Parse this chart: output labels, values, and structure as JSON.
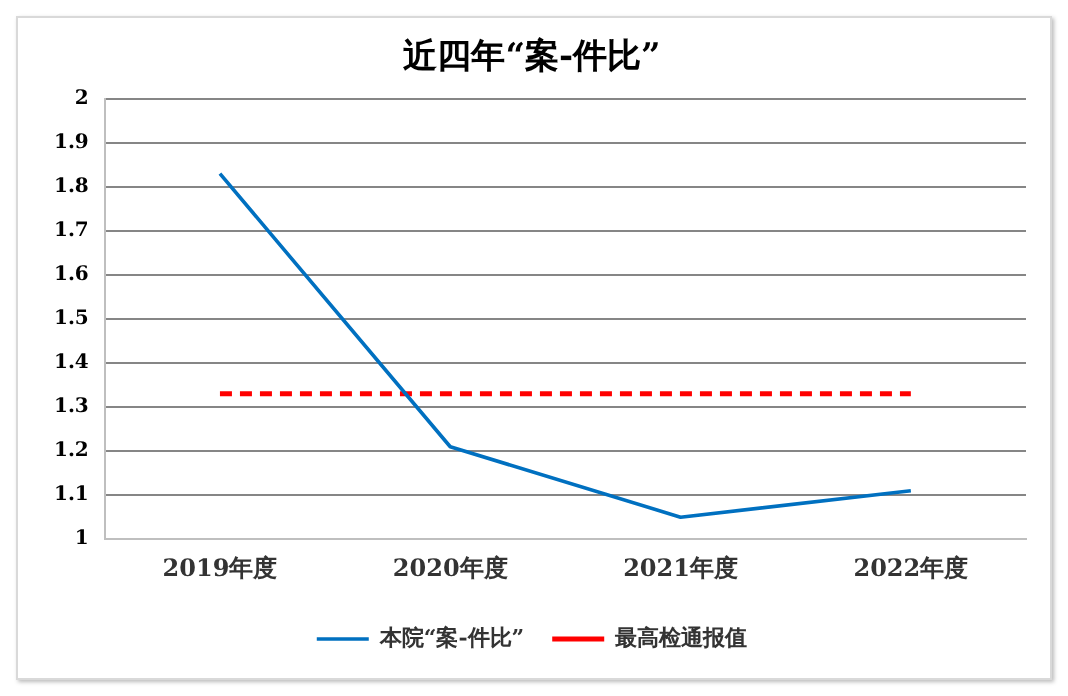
{
  "chart_data": {
    "type": "line",
    "title": "近四年“案-件比”",
    "categories": [
      "2019年度",
      "2020年度",
      "2021年度",
      "2022年度"
    ],
    "series": [
      {
        "name": "本院“案-件比”",
        "color": "#0070c0",
        "values": [
          1.83,
          1.21,
          1.05,
          1.11
        ],
        "line_style": "solid"
      },
      {
        "name": "最高检通报值",
        "color": "#ff0000",
        "values": [
          1.33,
          1.33,
          1.33,
          1.33
        ],
        "line_style": "dashed"
      }
    ],
    "ylim": [
      1,
      2
    ],
    "yticks": [
      1,
      1.1,
      1.2,
      1.3,
      1.4,
      1.5,
      1.6,
      1.7,
      1.8,
      1.9,
      2
    ],
    "grid": "y",
    "legend": "bottom",
    "marker": "none"
  }
}
